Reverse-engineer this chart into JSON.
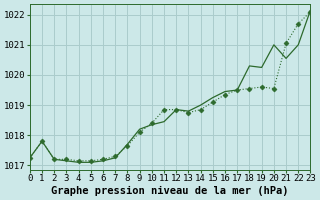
{
  "title": "Graphe pression niveau de la mer (hPa)",
  "bg_color": "#cce8e8",
  "grid_color": "#aacccc",
  "line_color": "#2d6a2d",
  "xlim": [
    0,
    23
  ],
  "ylim": [
    1016.85,
    1022.35
  ],
  "yticks": [
    1017,
    1018,
    1019,
    1020,
    1021,
    1022
  ],
  "xticks": [
    0,
    1,
    2,
    3,
    4,
    5,
    6,
    7,
    8,
    9,
    10,
    11,
    12,
    13,
    14,
    15,
    16,
    17,
    18,
    19,
    20,
    21,
    22,
    23
  ],
  "series_dot_x": [
    0,
    1,
    2,
    3,
    4,
    5,
    6,
    7,
    8,
    9,
    10,
    11,
    12,
    13,
    14,
    15,
    16,
    17,
    18,
    19,
    20,
    21,
    22,
    23
  ],
  "series_dot_y": [
    1017.25,
    1017.8,
    1017.2,
    1017.2,
    1017.15,
    1017.15,
    1017.2,
    1017.3,
    1017.65,
    1018.1,
    1018.4,
    1018.85,
    1018.85,
    1018.75,
    1018.85,
    1019.1,
    1019.35,
    1019.5,
    1019.55,
    1019.6,
    1019.55,
    1021.05,
    1021.7,
    1022.1
  ],
  "series_solid_x": [
    0,
    1,
    2,
    3,
    4,
    5,
    6,
    7,
    8,
    9,
    10,
    11,
    12,
    13,
    14,
    15,
    16,
    17,
    18,
    19,
    20,
    21,
    22,
    23
  ],
  "series_solid_y": [
    1017.25,
    1017.8,
    1017.2,
    1017.15,
    1017.1,
    1017.1,
    1017.15,
    1017.25,
    1017.7,
    1018.2,
    1018.35,
    1018.45,
    1018.85,
    1018.8,
    1019.0,
    1019.25,
    1019.45,
    1019.5,
    1020.3,
    1020.25,
    1021.0,
    1020.55,
    1021.0,
    1022.15
  ],
  "title_fontsize": 7.5,
  "tick_fontsize": 6.5
}
